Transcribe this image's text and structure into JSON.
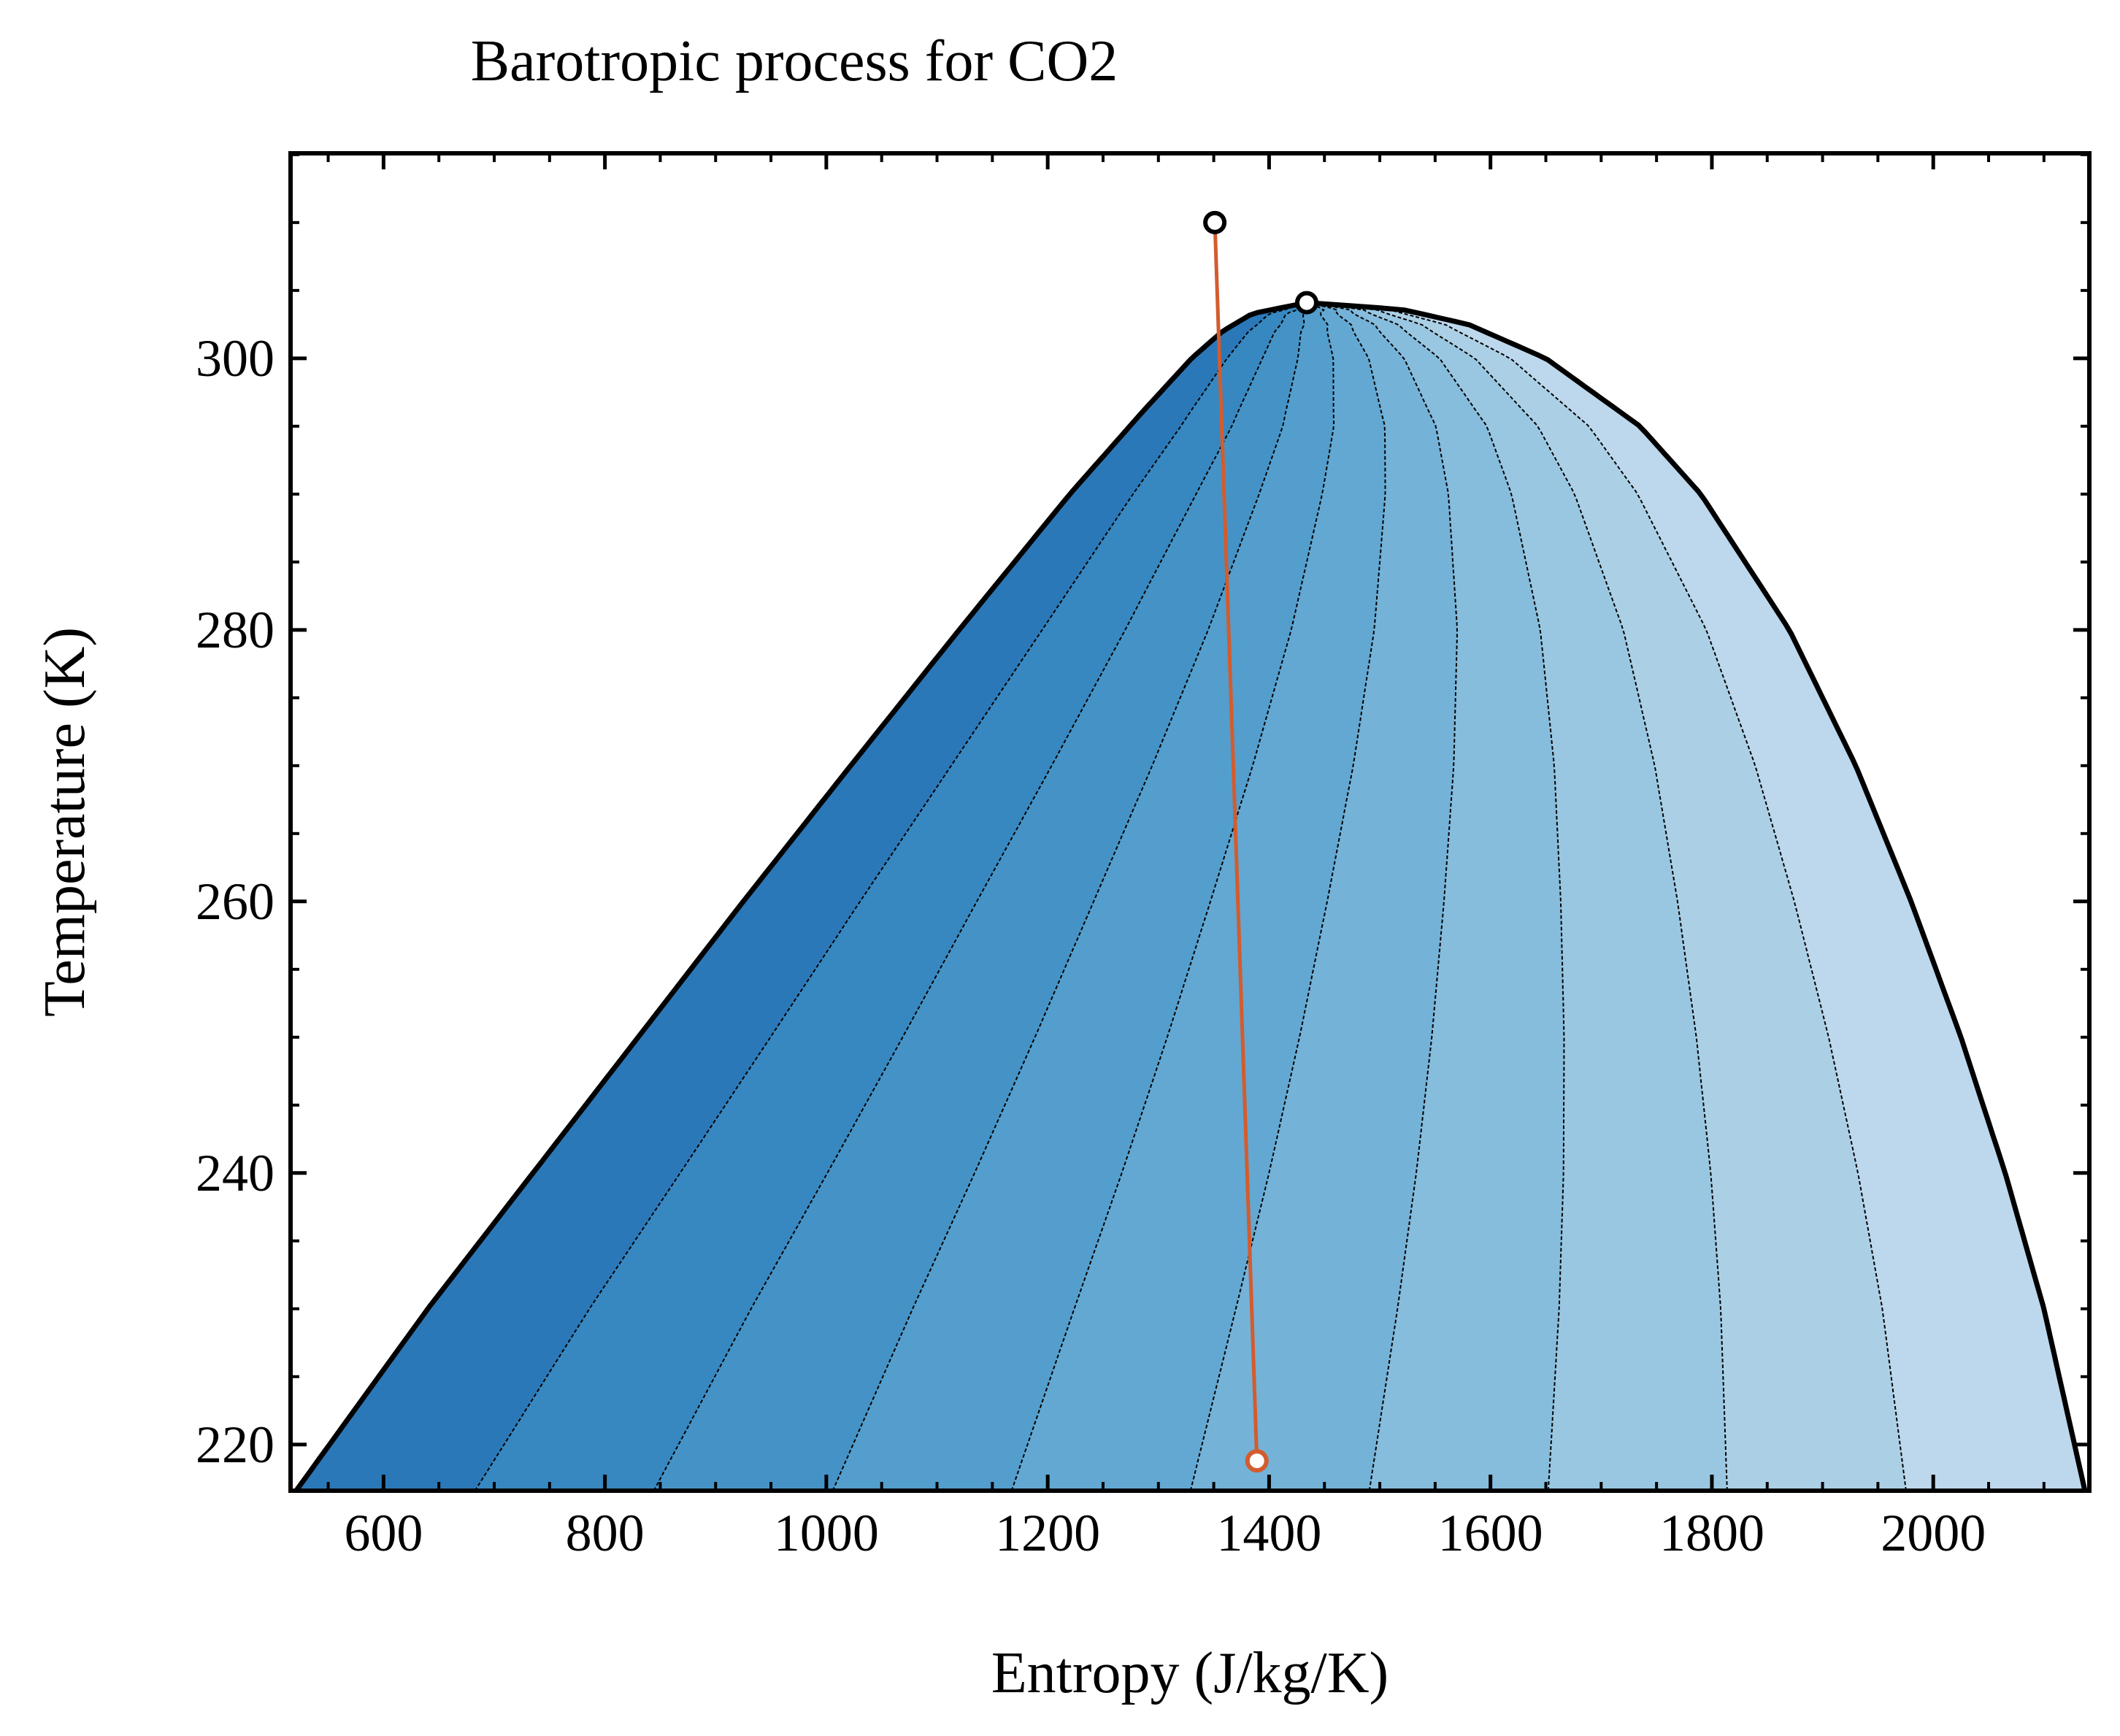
{
  "chart_data": {
    "type": "line",
    "title": "Barotropic process for CO2",
    "xlabel": "Entropy (J/kg/K)",
    "ylabel": "Temperature (K)",
    "xlim": [
      516,
      2141
    ],
    "ylim": [
      216.6,
      315.1
    ],
    "xticks": [
      600,
      800,
      1000,
      1200,
      1400,
      1600,
      1800,
      2000
    ],
    "yticks": [
      220,
      240,
      260,
      280,
      300
    ],
    "x_minor_step": 50,
    "y_minor_step": 5,
    "tick_direction": "in",
    "grid": false,
    "colors": {
      "dome": "#000000",
      "quality_lines": "#000000",
      "process": "#d35c2e",
      "fill_shades": [
        "#2b78b9",
        "#3787c0",
        "#4593c6",
        "#539ecd",
        "#62a8d2",
        "#74b2d8",
        "#86bcdc",
        "#99c7e1",
        "#abd0e6",
        "#bdd7ec"
      ]
    },
    "saturation_dome": {
      "T_triple": 216.6,
      "T_critical": 304.1,
      "s_critical": 1434,
      "liquid_line": [
        {
          "T": 216.6,
          "s": 521
        },
        {
          "T": 230,
          "s": 640
        },
        {
          "T": 240,
          "s": 735
        },
        {
          "T": 250,
          "s": 830
        },
        {
          "T": 260,
          "s": 925
        },
        {
          "T": 270,
          "s": 1022
        },
        {
          "T": 280,
          "s": 1120
        },
        {
          "T": 290,
          "s": 1220
        },
        {
          "T": 296,
          "s": 1285
        },
        {
          "T": 300,
          "s": 1330
        },
        {
          "T": 302,
          "s": 1358
        },
        {
          "T": 303.3,
          "s": 1385
        },
        {
          "T": 304.1,
          "s": 1434
        }
      ],
      "vapor_line": [
        {
          "T": 304.1,
          "s": 1434
        },
        {
          "T": 303.6,
          "s": 1520
        },
        {
          "T": 302.5,
          "s": 1580
        },
        {
          "T": 300,
          "s": 1650
        },
        {
          "T": 295,
          "s": 1735
        },
        {
          "T": 290,
          "s": 1790
        },
        {
          "T": 280,
          "s": 1870
        },
        {
          "T": 270,
          "s": 1930
        },
        {
          "T": 260,
          "s": 1980
        },
        {
          "T": 250,
          "s": 2025
        },
        {
          "T": 240,
          "s": 2065
        },
        {
          "T": 230,
          "s": 2100
        },
        {
          "T": 216.6,
          "s": 2137
        }
      ]
    },
    "quality_lines": {
      "qualities": [
        0.1,
        0.2,
        0.3,
        0.4,
        0.5,
        0.6,
        0.7,
        0.8,
        0.9
      ],
      "interpolation": "linear between liquid and vapor entropy at equal temperature"
    },
    "series": [
      {
        "points": [
          {
            "x": 1351,
            "y": 310.0
          },
          {
            "x": 1389,
            "y": 218.8
          }
        ]
      }
    ],
    "markers": [
      {
        "x": 1351,
        "y": 310.0,
        "edge_color": "#000000"
      },
      {
        "x": 1434,
        "y": 304.1,
        "edge_color": "#000000"
      },
      {
        "x": 1389,
        "y": 218.8,
        "edge_color": "#d35c2e"
      }
    ]
  }
}
